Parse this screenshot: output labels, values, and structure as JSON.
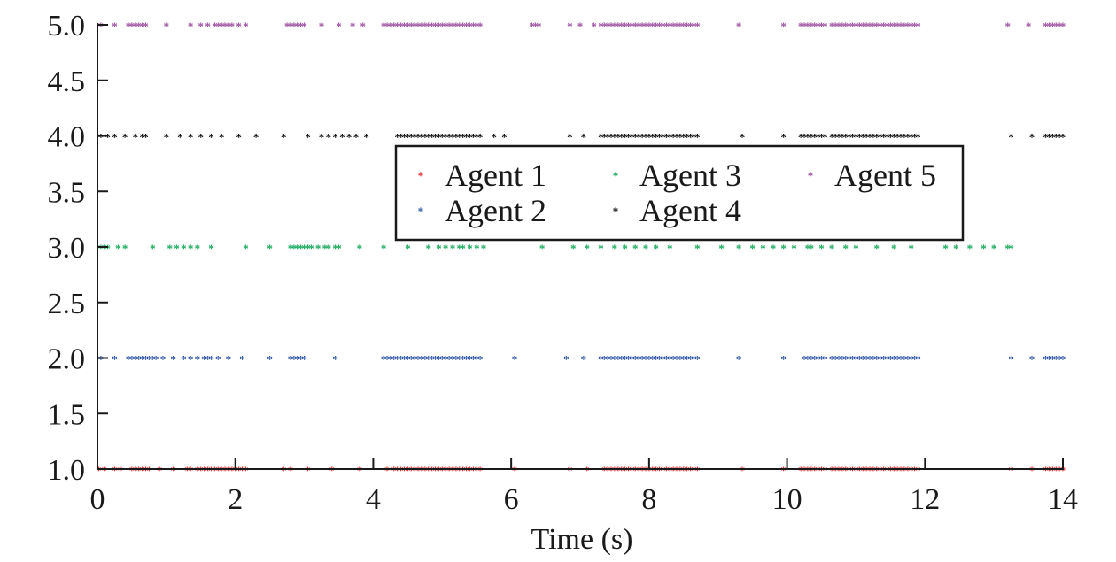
{
  "chart_data": {
    "type": "scatter",
    "title": "",
    "xlabel": "Time (s)",
    "ylabel": "",
    "xlim": [
      0,
      14
    ],
    "ylim": [
      1.0,
      5.0
    ],
    "x_ticks": [
      "0",
      "2",
      "4",
      "6",
      "8",
      "10",
      "12",
      "14"
    ],
    "y_ticks": [
      "1.0",
      "1.5",
      "2.0",
      "2.5",
      "3.0",
      "3.5",
      "4.0",
      "4.5",
      "5.0"
    ],
    "grid": false,
    "legend": {
      "placement": "upper-center",
      "columns": 3
    },
    "marker": "*",
    "series": [
      {
        "name": "Agent 1",
        "color": "#e8262b",
        "y": 1.0,
        "x": [
          0.02,
          0.1,
          0.25,
          0.33,
          0.5,
          0.55,
          0.6,
          0.65,
          0.7,
          0.75,
          0.9,
          1.1,
          1.3,
          1.35,
          1.45,
          1.5,
          1.55,
          1.6,
          1.65,
          1.7,
          1.75,
          1.8,
          1.85,
          1.9,
          1.95,
          2.0,
          2.05,
          2.1,
          2.15,
          2.7,
          2.8,
          3.05,
          3.4,
          3.8,
          4.2,
          4.3,
          4.35,
          4.4,
          4.45,
          4.5,
          4.55,
          4.6,
          4.65,
          4.7,
          4.75,
          4.8,
          4.85,
          4.9,
          4.95,
          5.0,
          5.05,
          5.1,
          5.15,
          5.2,
          5.25,
          5.3,
          5.35,
          5.4,
          5.45,
          5.5,
          5.55,
          6.05,
          6.85,
          7.1,
          7.35,
          7.4,
          7.45,
          7.5,
          7.55,
          7.6,
          7.65,
          7.7,
          7.75,
          7.8,
          7.85,
          7.9,
          7.95,
          8.0,
          8.05,
          8.1,
          8.15,
          8.2,
          8.25,
          8.3,
          8.35,
          8.4,
          8.45,
          8.5,
          8.55,
          8.6,
          8.65,
          8.7,
          9.35,
          9.95,
          10.2,
          10.25,
          10.3,
          10.35,
          10.4,
          10.45,
          10.5,
          10.55,
          10.65,
          10.7,
          10.75,
          10.8,
          10.85,
          10.9,
          10.95,
          11.0,
          11.05,
          11.1,
          11.15,
          11.2,
          11.25,
          11.3,
          11.35,
          11.4,
          11.45,
          11.5,
          11.55,
          11.6,
          11.65,
          11.7,
          11.75,
          11.8,
          11.85,
          11.9,
          13.25,
          13.55,
          13.75,
          13.8,
          13.85,
          13.9,
          13.95,
          14.0
        ]
      },
      {
        "name": "Agent 2",
        "color": "#2f55a4",
        "y": 2.0,
        "x": [
          0.05,
          0.25,
          0.45,
          0.5,
          0.55,
          0.6,
          0.65,
          0.7,
          0.75,
          0.8,
          0.85,
          0.95,
          1.1,
          1.25,
          1.35,
          1.45,
          1.55,
          1.6,
          1.65,
          1.75,
          1.9,
          2.1,
          2.5,
          2.8,
          2.85,
          2.9,
          2.95,
          3.0,
          3.45,
          4.15,
          4.2,
          4.25,
          4.3,
          4.35,
          4.4,
          4.45,
          4.5,
          4.55,
          4.6,
          4.65,
          4.7,
          4.75,
          4.8,
          4.85,
          4.9,
          4.95,
          5.0,
          5.05,
          5.1,
          5.15,
          5.2,
          5.25,
          5.3,
          5.35,
          5.4,
          5.45,
          5.5,
          5.55,
          6.05,
          6.8,
          7.05,
          7.3,
          7.35,
          7.4,
          7.45,
          7.5,
          7.55,
          7.6,
          7.65,
          7.7,
          7.75,
          7.8,
          7.85,
          7.9,
          7.95,
          8.0,
          8.05,
          8.1,
          8.15,
          8.2,
          8.25,
          8.3,
          8.35,
          8.4,
          8.45,
          8.5,
          8.55,
          8.6,
          8.65,
          8.7,
          9.3,
          9.95,
          10.25,
          10.3,
          10.35,
          10.4,
          10.45,
          10.5,
          10.55,
          10.65,
          10.7,
          10.75,
          10.8,
          10.85,
          10.9,
          10.95,
          11.0,
          11.05,
          11.1,
          11.15,
          11.2,
          11.25,
          11.3,
          11.35,
          11.4,
          11.45,
          11.5,
          11.55,
          11.6,
          11.65,
          11.7,
          11.75,
          11.8,
          11.85,
          11.9,
          13.25,
          13.55,
          13.75,
          13.8,
          13.85,
          13.9,
          13.95,
          14.0
        ]
      },
      {
        "name": "Agent 3",
        "color": "#15a85a",
        "y": 3.0,
        "x": [
          0.05,
          0.1,
          0.15,
          0.3,
          0.4,
          0.8,
          1.05,
          1.15,
          1.25,
          1.35,
          1.45,
          1.65,
          2.15,
          2.5,
          2.8,
          2.85,
          2.9,
          2.95,
          3.0,
          3.05,
          3.1,
          3.2,
          3.3,
          3.35,
          3.45,
          3.5,
          3.8,
          4.15,
          4.5,
          4.8,
          4.95,
          5.05,
          5.15,
          5.25,
          5.3,
          5.4,
          5.5,
          5.6,
          6.45,
          6.9,
          7.1,
          7.3,
          7.5,
          7.65,
          7.8,
          7.95,
          8.1,
          8.3,
          8.7,
          9.05,
          9.3,
          9.5,
          9.65,
          9.8,
          9.95,
          10.1,
          10.3,
          10.35,
          10.5,
          10.65,
          10.85,
          11.0,
          11.3,
          11.55,
          11.8,
          12.3,
          12.45,
          12.65,
          12.85,
          13.0,
          13.2,
          13.25
        ]
      },
      {
        "name": "Agent 4",
        "color": "#111111",
        "y": 4.0,
        "x": [
          0.05,
          0.15,
          0.25,
          0.4,
          0.55,
          0.65,
          0.7,
          1.0,
          1.2,
          1.35,
          1.5,
          1.65,
          1.8,
          2.05,
          2.3,
          2.7,
          3.05,
          3.25,
          3.35,
          3.45,
          3.55,
          3.65,
          3.75,
          3.9,
          4.35,
          4.4,
          4.45,
          4.5,
          4.55,
          4.6,
          4.65,
          4.7,
          4.75,
          4.8,
          4.85,
          4.9,
          4.95,
          5.0,
          5.05,
          5.1,
          5.15,
          5.2,
          5.25,
          5.3,
          5.35,
          5.4,
          5.45,
          5.5,
          5.55,
          5.75,
          5.9,
          6.85,
          7.05,
          7.3,
          7.35,
          7.4,
          7.45,
          7.5,
          7.55,
          7.6,
          7.65,
          7.7,
          7.75,
          7.8,
          7.85,
          7.9,
          7.95,
          8.0,
          8.05,
          8.1,
          8.15,
          8.2,
          8.25,
          8.3,
          8.35,
          8.4,
          8.45,
          8.5,
          8.55,
          8.6,
          8.65,
          8.7,
          9.35,
          9.95,
          10.2,
          10.25,
          10.3,
          10.35,
          10.4,
          10.45,
          10.5,
          10.55,
          10.65,
          10.7,
          10.75,
          10.8,
          10.85,
          10.9,
          10.95,
          11.0,
          11.05,
          11.1,
          11.15,
          11.2,
          11.25,
          11.3,
          11.35,
          11.4,
          11.45,
          11.5,
          11.55,
          11.6,
          11.65,
          11.7,
          11.75,
          11.8,
          11.85,
          11.9,
          13.25,
          13.55,
          13.75,
          13.8,
          13.85,
          13.9,
          13.95,
          14.0
        ]
      },
      {
        "name": "Agent 5",
        "color": "#9a4e9f",
        "y": 5.0,
        "x": [
          0.05,
          0.25,
          0.45,
          0.5,
          0.55,
          0.6,
          0.65,
          0.7,
          1.0,
          1.35,
          1.5,
          1.6,
          1.7,
          1.75,
          1.8,
          1.85,
          1.9,
          1.95,
          2.05,
          2.15,
          2.75,
          2.8,
          2.85,
          2.9,
          2.95,
          3.0,
          3.25,
          3.5,
          3.7,
          3.85,
          4.15,
          4.2,
          4.25,
          4.3,
          4.35,
          4.4,
          4.45,
          4.5,
          4.55,
          4.6,
          4.65,
          4.7,
          4.75,
          4.8,
          4.85,
          4.9,
          4.95,
          5.0,
          5.05,
          5.1,
          5.15,
          5.2,
          5.25,
          5.3,
          5.35,
          5.4,
          5.45,
          5.5,
          5.55,
          6.3,
          6.35,
          6.4,
          6.85,
          7.0,
          7.2,
          7.3,
          7.35,
          7.4,
          7.45,
          7.5,
          7.55,
          7.6,
          7.65,
          7.7,
          7.75,
          7.8,
          7.85,
          7.9,
          7.95,
          8.0,
          8.05,
          8.1,
          8.15,
          8.2,
          8.25,
          8.3,
          8.35,
          8.4,
          8.45,
          8.5,
          8.55,
          8.6,
          8.65,
          8.7,
          9.3,
          9.95,
          10.2,
          10.25,
          10.3,
          10.35,
          10.4,
          10.45,
          10.5,
          10.55,
          10.65,
          10.7,
          10.75,
          10.8,
          10.85,
          10.9,
          10.95,
          11.0,
          11.05,
          11.1,
          11.15,
          11.2,
          11.25,
          11.3,
          11.35,
          11.4,
          11.45,
          11.5,
          11.55,
          11.6,
          11.65,
          11.7,
          11.75,
          11.8,
          11.85,
          11.9,
          13.2,
          13.5,
          13.75,
          13.8,
          13.85,
          13.9,
          13.95,
          14.0
        ]
      }
    ]
  }
}
